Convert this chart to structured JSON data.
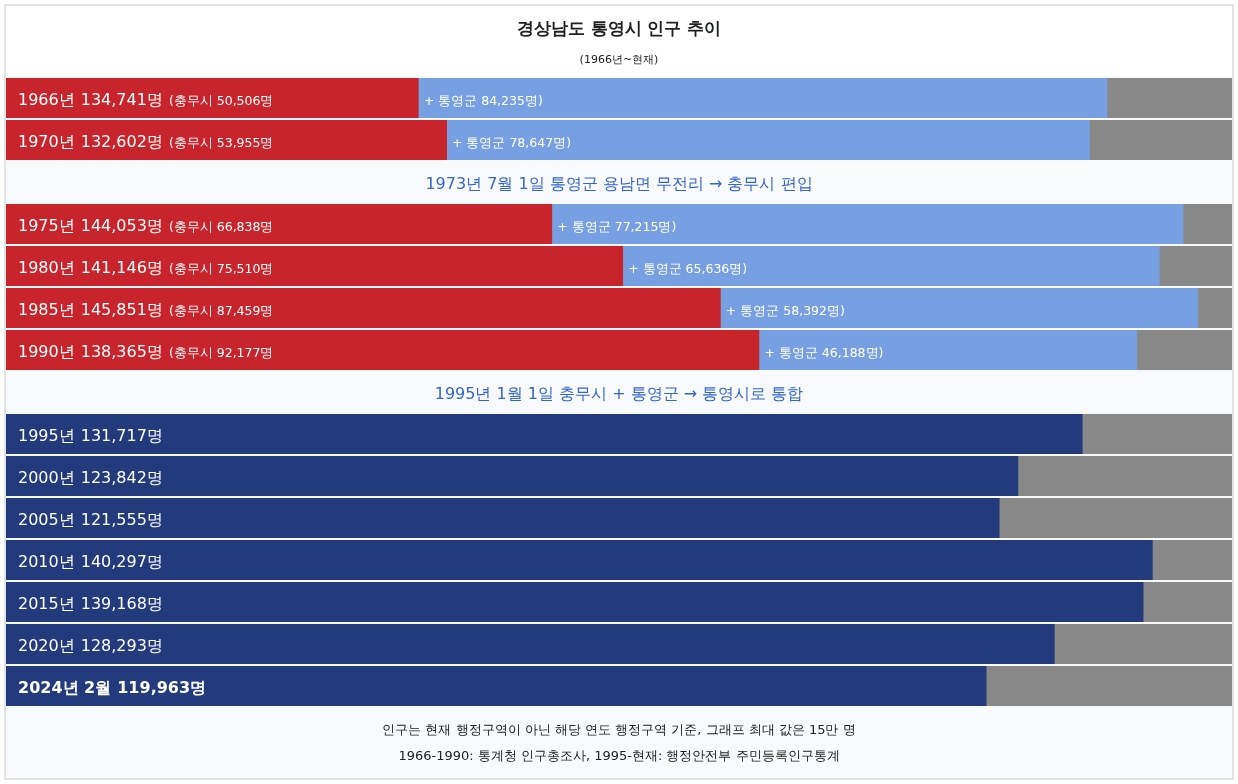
{
  "chart_data": {
    "type": "bar",
    "orientation": "horizontal",
    "stacked": true,
    "title": "경상남도 통영시 인구 추이",
    "subtitle": "(1966년~현재)",
    "categories": [
      "1966년",
      "1970년",
      null,
      "1975년",
      "1980년",
      "1985년",
      "1990년",
      null,
      "1995년",
      "2000년",
      "2005년",
      "2010년",
      "2015년",
      "2020년",
      "2024년 2월"
    ],
    "totals": [
      "134,741명",
      "132,602명",
      null,
      "144,053명",
      "141,146명",
      "145,851명",
      "138,365명",
      null,
      "131,717명",
      "123,842명",
      "121,555명",
      "140,297명",
      "139,168명",
      "128,293명",
      "119,963명"
    ],
    "series": [
      {
        "color": "#c8242b",
        "values": [
          50506,
          53955,
          null,
          66838,
          75510,
          87459,
          92177,
          null,
          null,
          null,
          null,
          null,
          null,
          null,
          null
        ],
        "value_labels": [
          "(충무시 50,506명",
          "(충무시 53,955명",
          null,
          "(충무시 66,838명",
          "(충무시 75,510명",
          "(충무시 87,459명",
          "(충무시 92,177명",
          null,
          null,
          null,
          null,
          null,
          null,
          null,
          null
        ]
      },
      {
        "color": "#77a0e3",
        "values": [
          84235,
          78647,
          null,
          77215,
          65636,
          58392,
          46188,
          null,
          null,
          null,
          null,
          null,
          null,
          null,
          null
        ],
        "value_labels": [
          "+ 통영군 84,235명)",
          "+ 통영군 78,647명)",
          null,
          "+ 통영군 77,215명)",
          "+ 통영군 65,636명)",
          "+ 통영군 58,392명)",
          "+ 통영군 46,188명)",
          null,
          null,
          null,
          null,
          null,
          null,
          null,
          null
        ]
      },
      {
        "color": "#233a7d",
        "values": [
          null,
          null,
          null,
          null,
          null,
          null,
          null,
          null,
          131717,
          123842,
          121555,
          140297,
          139168,
          128293,
          119963
        ]
      }
    ],
    "xlim": [
      0,
      150000
    ],
    "annotations": [
      "1973년 7월 1일 통영군 용남면 무전리 → 충무시 편입",
      "1995년 1월 1일 충무시 + 통영군 → 통영시로 통합",
      "인구는 현재 행정구역이 아닌 해당 연도 행정구역 기준, 그래프 최대 값은 15만 명",
      "1966-1990: 통계청 인구총조사, 1995-현재: 행정안전부 주민등록인구통계"
    ]
  }
}
